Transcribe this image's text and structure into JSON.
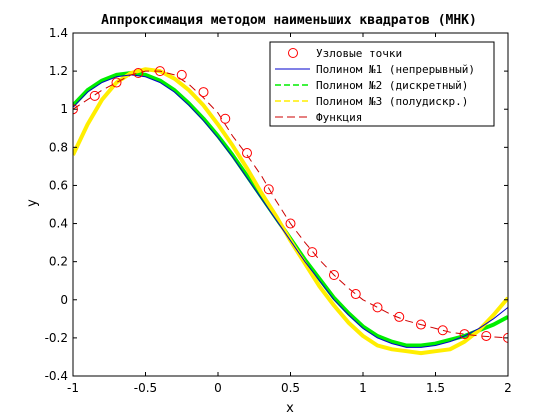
{
  "chart_data": {
    "type": "line",
    "title": "Аппроксимация методом наименьших квадратов (МНК)",
    "xlabel": "x",
    "ylabel": "y",
    "xlim": [
      -1,
      2
    ],
    "ylim": [
      -0.4,
      1.4
    ],
    "xticks": [
      "-1",
      "-0.5",
      "0",
      "0.5",
      "1",
      "1.5",
      "2"
    ],
    "yticks": [
      "-0.4",
      "-0.2",
      "0",
      "0.2",
      "0.4",
      "0.6",
      "0.8",
      "1",
      "1.2",
      "1.4"
    ],
    "grid": false,
    "legend_position": "top-right",
    "series": [
      {
        "name": "Узловые точки",
        "style": "markers",
        "color": "#ff0000",
        "x": [
          -1.0,
          -0.85,
          -0.7,
          -0.55,
          -0.4,
          -0.25,
          -0.1,
          0.05,
          0.2,
          0.35,
          0.5,
          0.65,
          0.8,
          0.95,
          1.1,
          1.25,
          1.4,
          1.55,
          1.7,
          1.85,
          2.0
        ],
        "y": [
          1.0,
          1.07,
          1.14,
          1.19,
          1.2,
          1.18,
          1.09,
          0.95,
          0.77,
          0.58,
          0.4,
          0.25,
          0.13,
          0.03,
          -0.04,
          -0.09,
          -0.13,
          -0.16,
          -0.18,
          -0.19,
          -0.2
        ]
      },
      {
        "name": "Полином №1 (непрерывный)",
        "style": "solid",
        "color": "#0000cc",
        "x": [
          -1.0,
          -0.9,
          -0.8,
          -0.7,
          -0.6,
          -0.5,
          -0.4,
          -0.3,
          -0.2,
          -0.1,
          0.0,
          0.1,
          0.2,
          0.3,
          0.4,
          0.5,
          0.6,
          0.7,
          0.8,
          0.9,
          1.0,
          1.1,
          1.2,
          1.3,
          1.4,
          1.5,
          1.6,
          1.7,
          1.8,
          1.9,
          2.0
        ],
        "y": [
          1.01,
          1.09,
          1.14,
          1.17,
          1.18,
          1.17,
          1.14,
          1.09,
          1.02,
          0.94,
          0.85,
          0.75,
          0.64,
          0.53,
          0.42,
          0.31,
          0.2,
          0.1,
          0.0,
          -0.08,
          -0.15,
          -0.2,
          -0.23,
          -0.25,
          -0.25,
          -0.24,
          -0.22,
          -0.19,
          -0.15,
          -0.1,
          -0.04
        ]
      },
      {
        "name": "Полином №2 (дискретный)",
        "style": "dashed",
        "color": "#00ee00",
        "x": [
          -1.0,
          -0.9,
          -0.8,
          -0.7,
          -0.6,
          -0.5,
          -0.4,
          -0.3,
          -0.2,
          -0.1,
          0.0,
          0.1,
          0.2,
          0.3,
          0.4,
          0.5,
          0.6,
          0.7,
          0.8,
          0.9,
          1.0,
          1.1,
          1.2,
          1.3,
          1.4,
          1.5,
          1.6,
          1.7,
          1.8,
          1.9,
          2.0
        ],
        "y": [
          1.02,
          1.1,
          1.15,
          1.18,
          1.19,
          1.18,
          1.15,
          1.1,
          1.03,
          0.95,
          0.86,
          0.76,
          0.65,
          0.54,
          0.43,
          0.32,
          0.21,
          0.11,
          0.01,
          -0.07,
          -0.14,
          -0.19,
          -0.22,
          -0.24,
          -0.24,
          -0.23,
          -0.21,
          -0.19,
          -0.16,
          -0.13,
          -0.09
        ]
      },
      {
        "name": "Полином №3 (полудискр.)",
        "style": "dashdot",
        "color": "#ffee00",
        "x": [
          -1.0,
          -0.9,
          -0.8,
          -0.7,
          -0.6,
          -0.5,
          -0.4,
          -0.3,
          -0.2,
          -0.1,
          0.0,
          0.1,
          0.2,
          0.3,
          0.4,
          0.5,
          0.6,
          0.7,
          0.8,
          0.9,
          1.0,
          1.1,
          1.2,
          1.3,
          1.4,
          1.5,
          1.6,
          1.7,
          1.8,
          1.9,
          2.0
        ],
        "y": [
          0.76,
          0.92,
          1.05,
          1.14,
          1.19,
          1.21,
          1.2,
          1.16,
          1.1,
          1.02,
          0.92,
          0.81,
          0.69,
          0.56,
          0.44,
          0.31,
          0.19,
          0.07,
          -0.03,
          -0.12,
          -0.19,
          -0.24,
          -0.26,
          -0.27,
          -0.28,
          -0.27,
          -0.26,
          -0.22,
          -0.16,
          -0.08,
          0.01
        ]
      },
      {
        "name": "Функция",
        "style": "longdash",
        "color": "#cc0000",
        "x": [
          -1.0,
          -0.9,
          -0.8,
          -0.7,
          -0.6,
          -0.5,
          -0.4,
          -0.3,
          -0.2,
          -0.1,
          0.0,
          0.1,
          0.2,
          0.3,
          0.4,
          0.5,
          0.6,
          0.7,
          0.8,
          0.9,
          1.0,
          1.1,
          1.2,
          1.3,
          1.4,
          1.5,
          1.6,
          1.7,
          1.8,
          1.9,
          2.0
        ],
        "y": [
          1.0,
          1.05,
          1.1,
          1.14,
          1.18,
          1.2,
          1.2,
          1.18,
          1.13,
          1.06,
          0.98,
          0.86,
          0.76,
          0.65,
          0.52,
          0.4,
          0.3,
          0.21,
          0.13,
          0.06,
          0.0,
          -0.04,
          -0.08,
          -0.11,
          -0.13,
          -0.15,
          -0.17,
          -0.18,
          -0.19,
          -0.195,
          -0.2
        ]
      }
    ]
  }
}
